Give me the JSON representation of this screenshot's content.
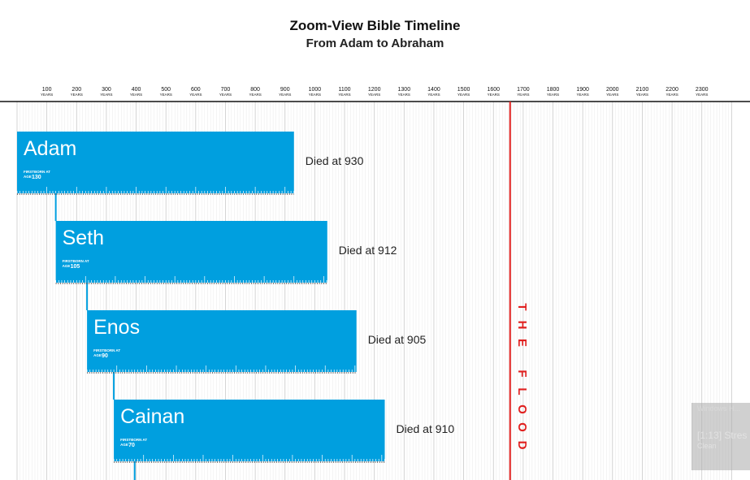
{
  "header": {
    "title": "Zoom-View Bible Timeline",
    "subtitle": "From Adam to Abraham"
  },
  "chart_data": {
    "type": "bar",
    "title": "Zoom-View Bible Timeline",
    "subtitle": "From Adam to Abraham",
    "axis_ticks": [
      {
        "value": 100,
        "label": "100",
        "unit": "YEARS"
      },
      {
        "value": 200,
        "label": "200",
        "unit": "YEARS"
      },
      {
        "value": 300,
        "label": "300",
        "unit": "YEARS"
      },
      {
        "value": 400,
        "label": "400",
        "unit": "YEARS"
      },
      {
        "value": 500,
        "label": "500",
        "unit": "YEARS"
      },
      {
        "value": 600,
        "label": "600",
        "unit": "YEARS"
      },
      {
        "value": 700,
        "label": "700",
        "unit": "YEARS"
      },
      {
        "value": 800,
        "label": "800",
        "unit": "YEARS"
      },
      {
        "value": 900,
        "label": "900",
        "unit": "YEARS"
      },
      {
        "value": 1000,
        "label": "1000",
        "unit": "YEARS"
      },
      {
        "value": 1100,
        "label": "1100",
        "unit": "YEARS"
      },
      {
        "value": 1200,
        "label": "1200",
        "unit": "YEARS"
      },
      {
        "value": 1300,
        "label": "1300",
        "unit": "YEARS"
      },
      {
        "value": 1400,
        "label": "1400",
        "unit": "YEARS"
      },
      {
        "value": 1500,
        "label": "1500",
        "unit": "YEARS"
      },
      {
        "value": 1600,
        "label": "1600",
        "unit": "YEARS"
      },
      {
        "value": 1700,
        "label": "1700",
        "unit": "YEARS"
      },
      {
        "value": 1800,
        "label": "1800",
        "unit": "YEARS"
      },
      {
        "value": 1900,
        "label": "1900",
        "unit": "YEARS"
      },
      {
        "value": 2000,
        "label": "2000",
        "unit": "YEARS"
      },
      {
        "value": 2100,
        "label": "2100",
        "unit": "YEARS"
      },
      {
        "value": 2200,
        "label": "2200",
        "unit": "YEARS"
      },
      {
        "value": 2300,
        "label": "2300",
        "unit": "YEARS"
      }
    ],
    "xlim": [
      0,
      2400
    ],
    "grid": true,
    "bars": [
      {
        "name": "Adam",
        "born": 0,
        "died_label": "Died at 930",
        "lifespan": 930,
        "firstborn_label": "FIRSTBORN AT",
        "age_prefix": "AGE",
        "firstborn_age": 130
      },
      {
        "name": "Seth",
        "born": 130,
        "died_label": "Died at 912",
        "lifespan": 912,
        "firstborn_label": "FIRSTBORN AT",
        "age_prefix": "AGE",
        "firstborn_age": 105
      },
      {
        "name": "Enos",
        "born": 235,
        "died_label": "Died at 905",
        "lifespan": 905,
        "firstborn_label": "FIRSTBORN AT",
        "age_prefix": "AGE",
        "firstborn_age": 90
      },
      {
        "name": "Cainan",
        "born": 325,
        "died_label": "Died at 910",
        "lifespan": 910,
        "firstborn_label": "FIRSTBORN AT",
        "age_prefix": "AGE",
        "firstborn_age": 70
      }
    ],
    "event": {
      "label": "THE FLOOD",
      "year": 1656,
      "color": "#e0201f"
    },
    "bar_color": "#009fdf"
  },
  "notification": {
    "title": "Windows H...",
    "main": "[1:13] Stres",
    "sub": "Clean"
  }
}
